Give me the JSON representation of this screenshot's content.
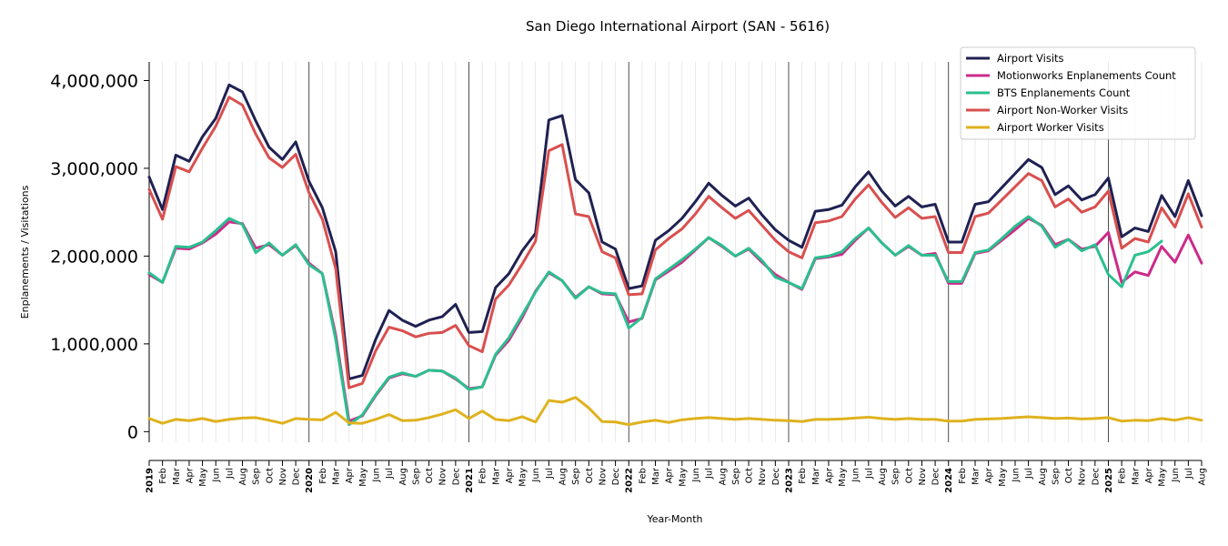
{
  "chart_data": {
    "type": "line",
    "title": "San Diego International Airport (SAN - 5616)",
    "xlabel": "Year-Month",
    "ylabel": "Enplanements / Visitations",
    "ylim": [
      -100000,
      4150000
    ],
    "yticks": [
      0,
      1000000,
      2000000,
      3000000,
      4000000
    ],
    "ytick_labels": [
      "0",
      "1,000,000",
      "2,000,000",
      "3,000,000",
      "4,000,000"
    ],
    "grid": "vertical monthly gridlines; solid line at each January",
    "legend_position": "top-right",
    "x": [
      "2019-01",
      "2019-02",
      "2019-03",
      "2019-04",
      "2019-05",
      "2019-06",
      "2019-07",
      "2019-08",
      "2019-09",
      "2019-10",
      "2019-11",
      "2019-12",
      "2020-01",
      "2020-02",
      "2020-03",
      "2020-04",
      "2020-05",
      "2020-06",
      "2020-07",
      "2020-08",
      "2020-09",
      "2020-10",
      "2020-11",
      "2020-12",
      "2021-01",
      "2021-02",
      "2021-03",
      "2021-04",
      "2021-05",
      "2021-06",
      "2021-07",
      "2021-08",
      "2021-09",
      "2021-10",
      "2021-11",
      "2021-12",
      "2022-01",
      "2022-02",
      "2022-03",
      "2022-04",
      "2022-05",
      "2022-06",
      "2022-07",
      "2022-08",
      "2022-09",
      "2022-10",
      "2022-11",
      "2022-12",
      "2023-01",
      "2023-02",
      "2023-03",
      "2023-04",
      "2023-05",
      "2023-06",
      "2023-07",
      "2023-08",
      "2023-09",
      "2023-10",
      "2023-11",
      "2023-12",
      "2024-01",
      "2024-02",
      "2024-03",
      "2024-04",
      "2024-05",
      "2024-06",
      "2024-07",
      "2024-08",
      "2024-09",
      "2024-10",
      "2024-11",
      "2024-12",
      "2025-01",
      "2025-02",
      "2025-03",
      "2025-04",
      "2025-05",
      "2025-06",
      "2025-07",
      "2025-08"
    ],
    "x_tick_labels": [
      "2019",
      "Feb",
      "Mar",
      "Apr",
      "May",
      "Jun",
      "Jul",
      "Aug",
      "Sep",
      "Oct",
      "Nov",
      "Dec",
      "2020",
      "Feb",
      "Mar",
      "Apr",
      "May",
      "Jun",
      "Jul",
      "Aug",
      "Sep",
      "Oct",
      "Nov",
      "Dec",
      "2021",
      "Feb",
      "Mar",
      "Apr",
      "May",
      "Jun",
      "Jul",
      "Aug",
      "Sep",
      "Oct",
      "Nov",
      "Dec",
      "2022",
      "Feb",
      "Mar",
      "Apr",
      "May",
      "Jun",
      "Jul",
      "Aug",
      "Sep",
      "Oct",
      "Nov",
      "Dec",
      "2023",
      "Feb",
      "Mar",
      "Apr",
      "May",
      "Jun",
      "Jul",
      "Aug",
      "Sep",
      "Oct",
      "Nov",
      "Dec",
      "2024",
      "Feb",
      "Mar",
      "Apr",
      "May",
      "Jun",
      "Jul",
      "Aug",
      "Sep",
      "Oct",
      "Nov",
      "Dec",
      "2025",
      "Feb",
      "Mar",
      "Apr",
      "May",
      "Jun",
      "Jul",
      "Aug"
    ],
    "series": [
      {
        "name": "Airport Visits",
        "color": "#1f2152",
        "values": [
          2900000,
          2530000,
          3150000,
          3080000,
          3360000,
          3570000,
          3950000,
          3870000,
          3540000,
          3240000,
          3100000,
          3300000,
          2850000,
          2550000,
          2050000,
          600000,
          640000,
          1050000,
          1380000,
          1270000,
          1200000,
          1270000,
          1310000,
          1450000,
          1130000,
          1140000,
          1640000,
          1800000,
          2060000,
          2260000,
          3550000,
          3600000,
          2870000,
          2720000,
          2160000,
          2080000,
          1630000,
          1660000,
          2180000,
          2290000,
          2430000,
          2620000,
          2830000,
          2690000,
          2570000,
          2660000,
          2470000,
          2300000,
          2180000,
          2100000,
          2510000,
          2530000,
          2580000,
          2790000,
          2960000,
          2740000,
          2570000,
          2680000,
          2560000,
          2590000,
          2160000,
          2160000,
          2590000,
          2620000,
          2780000,
          2940000,
          3100000,
          3010000,
          2700000,
          2800000,
          2640000,
          2700000,
          2890000,
          2220000,
          2320000,
          2280000,
          2690000,
          2450000,
          2860000,
          2460000
        ]
      },
      {
        "name": "Motionworks Enplanements Count",
        "color": "#cc2a8a",
        "values": [
          1790000,
          1700000,
          2090000,
          2080000,
          2150000,
          2250000,
          2390000,
          2370000,
          2090000,
          2130000,
          2010000,
          2120000,
          1920000,
          1800000,
          1100000,
          120000,
          180000,
          410000,
          610000,
          660000,
          630000,
          700000,
          690000,
          600000,
          490000,
          510000,
          870000,
          1040000,
          1300000,
          1600000,
          1810000,
          1720000,
          1530000,
          1650000,
          1570000,
          1560000,
          1250000,
          1290000,
          1730000,
          1830000,
          1930000,
          2070000,
          2210000,
          2110000,
          2000000,
          2080000,
          1930000,
          1790000,
          1700000,
          1620000,
          1970000,
          1990000,
          2020000,
          2180000,
          2320000,
          2150000,
          2010000,
          2110000,
          2010000,
          2030000,
          1690000,
          1690000,
          2030000,
          2060000,
          2180000,
          2300000,
          2430000,
          2350000,
          2130000,
          2190000,
          2080000,
          2110000,
          2270000,
          1700000,
          1820000,
          1780000,
          2110000,
          1930000,
          2240000,
          1920000
        ]
      },
      {
        "name": "BTS Enplanements Count",
        "color": "#2bbf8f",
        "values": [
          1810000,
          1700000,
          2110000,
          2100000,
          2160000,
          2290000,
          2430000,
          2360000,
          2040000,
          2150000,
          2010000,
          2130000,
          1900000,
          1800000,
          1050000,
          80000,
          190000,
          420000,
          620000,
          670000,
          630000,
          700000,
          690000,
          610000,
          480000,
          510000,
          880000,
          1070000,
          1330000,
          1590000,
          1820000,
          1720000,
          1520000,
          1650000,
          1580000,
          1570000,
          1180000,
          1300000,
          1740000,
          1850000,
          1960000,
          2080000,
          2210000,
          2120000,
          2000000,
          2090000,
          1950000,
          1760000,
          1700000,
          1630000,
          1980000,
          2000000,
          2050000,
          2200000,
          2320000,
          2150000,
          2010000,
          2120000,
          2010000,
          2010000,
          1710000,
          1710000,
          2040000,
          2070000,
          2200000,
          2340000,
          2450000,
          2340000,
          2100000,
          2190000,
          2060000,
          2130000,
          1790000,
          1650000,
          2010000,
          2050000,
          2170000,
          null,
          null,
          null
        ]
      },
      {
        "name": "Airport Non-Worker Visits",
        "color": "#d94f4f",
        "values": [
          2760000,
          2420000,
          3020000,
          2960000,
          3230000,
          3480000,
          3810000,
          3720000,
          3390000,
          3120000,
          3010000,
          3160000,
          2720000,
          2420000,
          1860000,
          500000,
          550000,
          920000,
          1190000,
          1150000,
          1080000,
          1120000,
          1130000,
          1210000,
          980000,
          910000,
          1510000,
          1670000,
          1910000,
          2170000,
          3200000,
          3270000,
          2480000,
          2450000,
          2050000,
          1980000,
          1560000,
          1570000,
          2070000,
          2200000,
          2310000,
          2480000,
          2680000,
          2550000,
          2430000,
          2520000,
          2350000,
          2180000,
          2050000,
          1980000,
          2380000,
          2400000,
          2450000,
          2650000,
          2810000,
          2610000,
          2440000,
          2550000,
          2430000,
          2450000,
          2040000,
          2040000,
          2450000,
          2490000,
          2640000,
          2790000,
          2940000,
          2860000,
          2560000,
          2650000,
          2500000,
          2560000,
          2740000,
          2090000,
          2200000,
          2160000,
          2550000,
          2330000,
          2710000,
          2330000
        ]
      },
      {
        "name": "Airport Worker Visits",
        "color": "#dfb21e",
        "values": [
          150000,
          95000,
          140000,
          125000,
          150000,
          115000,
          140000,
          155000,
          160000,
          130000,
          95000,
          150000,
          140000,
          135000,
          220000,
          100000,
          95000,
          140000,
          195000,
          125000,
          130000,
          160000,
          200000,
          250000,
          150000,
          235000,
          140000,
          125000,
          170000,
          110000,
          355000,
          335000,
          390000,
          270000,
          115000,
          110000,
          80000,
          110000,
          130000,
          105000,
          135000,
          150000,
          160000,
          150000,
          140000,
          150000,
          140000,
          130000,
          125000,
          115000,
          140000,
          140000,
          145000,
          155000,
          165000,
          150000,
          140000,
          150000,
          140000,
          140000,
          120000,
          120000,
          140000,
          145000,
          150000,
          160000,
          170000,
          160000,
          150000,
          155000,
          145000,
          150000,
          160000,
          120000,
          130000,
          125000,
          150000,
          130000,
          160000,
          130000
        ]
      }
    ]
  }
}
